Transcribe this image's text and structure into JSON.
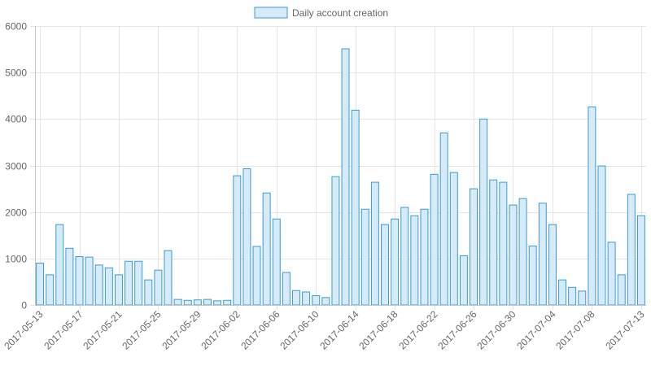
{
  "chart_data": {
    "type": "bar",
    "legend": {
      "position": "top",
      "label": "Daily account creation"
    },
    "colors": {
      "bar_fill": "#d6ebf9",
      "bar_stroke": "#3a9bd5",
      "grid": "#e5e5e5",
      "axis": "#c8c8c8",
      "text": "#666666"
    },
    "ylim": [
      0,
      6000
    ],
    "yticks": [
      0,
      1000,
      2000,
      3000,
      4000,
      5000,
      6000
    ],
    "grid": true,
    "categories": [
      "2017-05-13",
      "2017-05-14",
      "2017-05-15",
      "2017-05-16",
      "2017-05-17",
      "2017-05-18",
      "2017-05-19",
      "2017-05-20",
      "2017-05-21",
      "2017-05-22",
      "2017-05-23",
      "2017-05-24",
      "2017-05-25",
      "2017-05-26",
      "2017-05-27",
      "2017-05-28",
      "2017-05-29",
      "2017-05-30",
      "2017-05-31",
      "2017-06-01",
      "2017-06-02",
      "2017-06-03",
      "2017-06-04",
      "2017-06-05",
      "2017-06-06",
      "2017-06-07",
      "2017-06-08",
      "2017-06-09",
      "2017-06-10",
      "2017-06-11",
      "2017-06-12",
      "2017-06-13",
      "2017-06-14",
      "2017-06-15",
      "2017-06-16",
      "2017-06-17",
      "2017-06-18",
      "2017-06-19",
      "2017-06-20",
      "2017-06-21",
      "2017-06-22",
      "2017-06-23",
      "2017-06-24",
      "2017-06-25",
      "2017-06-26",
      "2017-06-27",
      "2017-06-28",
      "2017-06-29",
      "2017-06-30",
      "2017-07-01",
      "2017-07-02",
      "2017-07-03",
      "2017-07-04",
      "2017-07-05",
      "2017-07-06",
      "2017-07-07",
      "2017-07-08",
      "2017-07-09",
      "2017-07-10",
      "2017-07-11",
      "2017-07-12",
      "2017-07-13"
    ],
    "visible_tick_labels": [
      "2017-05-13",
      "2017-05-17",
      "2017-05-21",
      "2017-05-25",
      "2017-05-29",
      "2017-06-02",
      "2017-06-06",
      "2017-06-10",
      "2017-06-14",
      "2017-06-18",
      "2017-06-22",
      "2017-06-26",
      "2017-06-30",
      "2017-07-04",
      "2017-07-08",
      "2017-07-13"
    ],
    "series": [
      {
        "name": "Daily account creation",
        "values": [
          900,
          650,
          1730,
          1220,
          1040,
          1030,
          860,
          800,
          650,
          940,
          940,
          540,
          750,
          1170,
          120,
          100,
          110,
          120,
          90,
          100,
          2780,
          2930,
          1260,
          2410,
          1850,
          700,
          310,
          280,
          200,
          160,
          2760,
          5510,
          4190,
          2060,
          2640,
          1730,
          1850,
          2100,
          1920,
          2060,
          2810,
          3700,
          2850,
          1060,
          2500,
          4000,
          2690,
          2640,
          2150,
          2290,
          1270,
          2190,
          1730,
          540,
          380,
          300,
          4260,
          2990,
          1350,
          650,
          2380,
          1920
        ]
      }
    ]
  }
}
